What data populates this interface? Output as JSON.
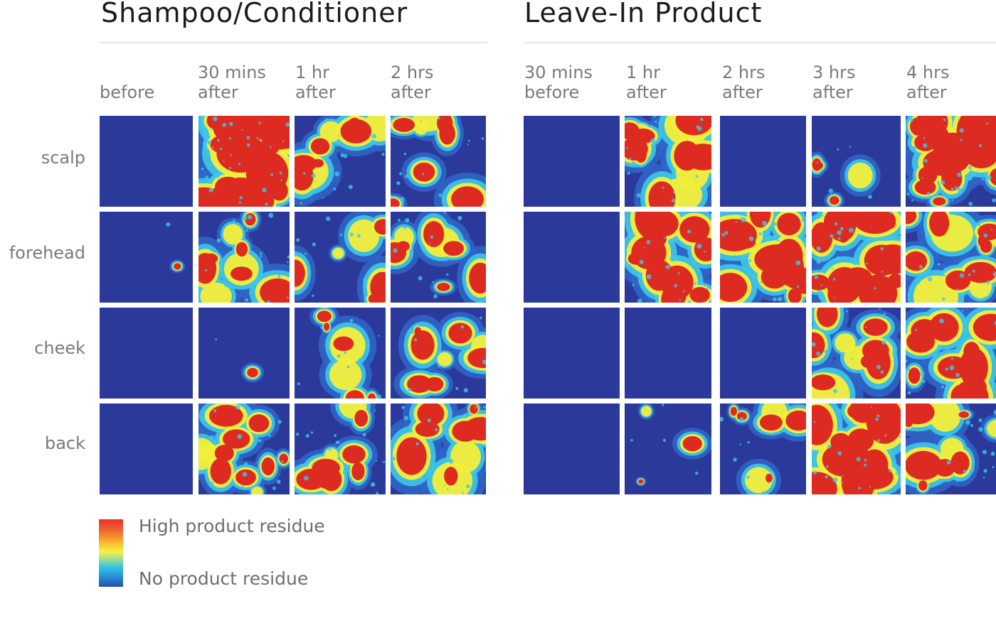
{
  "chart_data": [
    {
      "type": "heatmap",
      "title": "Shampoo/Conditioner",
      "columns": [
        [
          "before",
          ""
        ],
        [
          "30 mins",
          "after"
        ],
        [
          "1 hr",
          "after"
        ],
        [
          "2 hrs",
          "after"
        ]
      ],
      "rows": [
        "scalp",
        "forehead",
        "cheek",
        "back"
      ],
      "residue_level": [
        [
          0.0,
          0.9,
          0.35,
          0.3
        ],
        [
          0.02,
          0.4,
          0.25,
          0.35
        ],
        [
          0.0,
          0.02,
          0.25,
          0.3
        ],
        [
          0.0,
          0.45,
          0.4,
          0.4
        ]
      ]
    },
    {
      "type": "heatmap",
      "title": "Leave-In Product",
      "columns": [
        [
          "30 mins",
          "before"
        ],
        [
          "1 hr",
          "after"
        ],
        [
          "2 hrs",
          "after"
        ],
        [
          "3 hrs",
          "after"
        ],
        [
          "4 hrs",
          "after"
        ]
      ],
      "rows": [
        "scalp",
        "forehead",
        "cheek",
        "back"
      ],
      "residue_level": [
        [
          0.0,
          0.45,
          0.0,
          0.15,
          0.7
        ],
        [
          0.0,
          0.55,
          0.6,
          0.6,
          0.45
        ],
        [
          0.0,
          0.0,
          0.0,
          0.4,
          0.55
        ],
        [
          0.0,
          0.12,
          0.25,
          0.7,
          0.4
        ]
      ]
    }
  ],
  "legend": {
    "high": "High product residue",
    "low": "No product residue",
    "colors": [
      "#e8322b",
      "#fbbf2c",
      "#f7f143",
      "#2cc3e6",
      "#1f4fa8"
    ]
  },
  "colors": {
    "background_blue": "#2b3a9a",
    "mid_blue": "#2f66c8",
    "light_blue": "#3ec7e6",
    "yellow": "#f3ee3a",
    "red": "#dd2b22",
    "grid_background": "#ffffff"
  }
}
